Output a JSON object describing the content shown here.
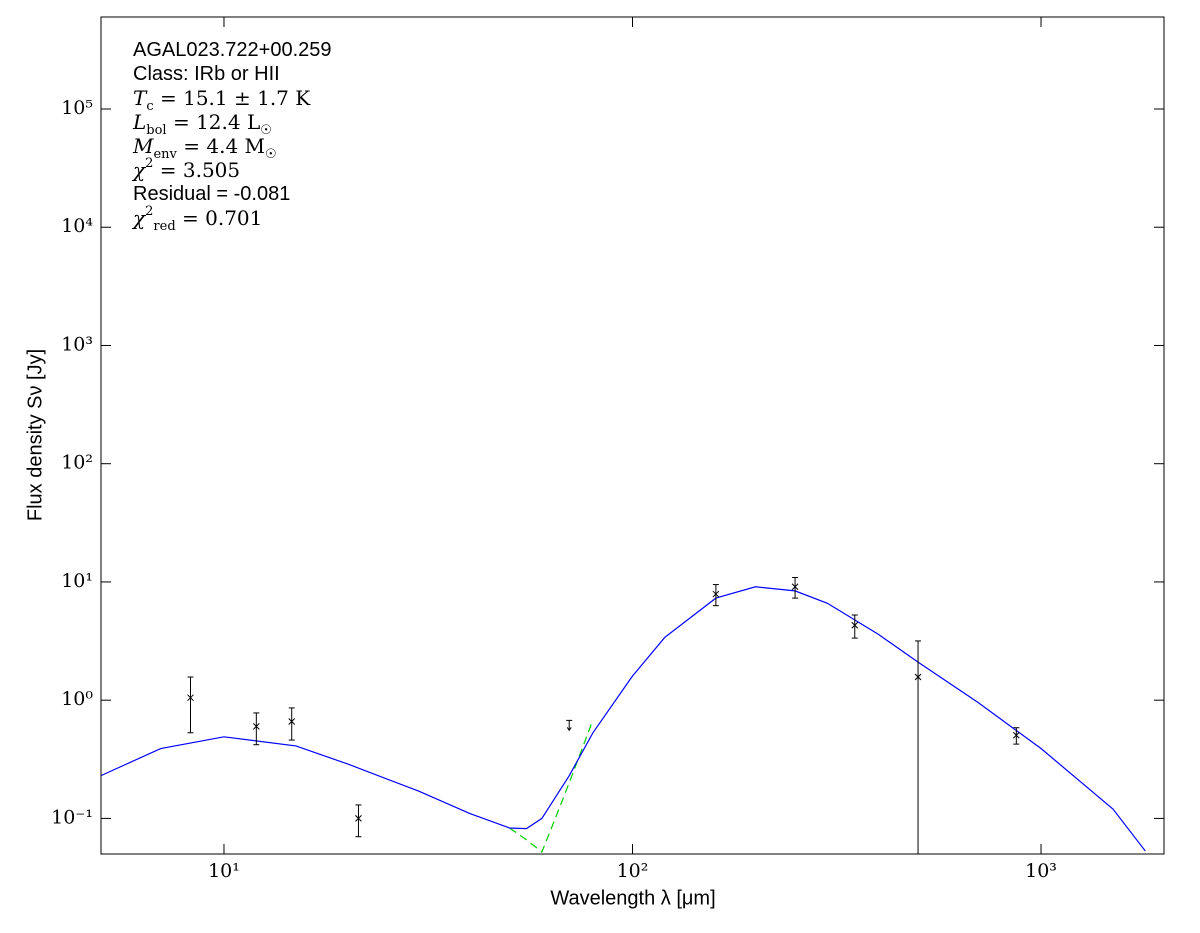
{
  "chart_data": {
    "type": "sed",
    "xlabel": "Wavelength λ [μm]",
    "ylabel": "Flux density Sν [Jy]",
    "log_x": true,
    "log_y": true,
    "xlim": [
      5,
      2000
    ],
    "ylim": [
      0.05,
      600000
    ],
    "xticks": [
      {
        "value": 10,
        "label": "10¹"
      },
      {
        "value": 100,
        "label": "10²"
      },
      {
        "value": 1000,
        "label": "10³"
      }
    ],
    "yticks": [
      {
        "value": 0.1,
        "label": "10⁻¹"
      },
      {
        "value": 1,
        "label": "10⁰"
      },
      {
        "value": 10,
        "label": "10¹"
      },
      {
        "value": 100,
        "label": "10²"
      },
      {
        "value": 1000,
        "label": "10³"
      },
      {
        "value": 10000,
        "label": "10⁴"
      },
      {
        "value": 100000,
        "label": "10⁵"
      }
    ],
    "annotations": [
      {
        "font": "sans",
        "runs": [
          {
            "t": "AGAL023.722+00.259"
          }
        ]
      },
      {
        "font": "sans",
        "runs": [
          {
            "t": "Class: IRb or HII"
          }
        ]
      },
      {
        "font": "serif",
        "runs": [
          {
            "t": "T",
            "it": true
          },
          {
            "t": "c",
            "sub": true
          },
          {
            "t": " = 15.1 ± 1.7 K"
          }
        ]
      },
      {
        "font": "serif",
        "runs": [
          {
            "t": "L",
            "it": true
          },
          {
            "t": "bol",
            "sub": true
          },
          {
            "t": " = 12.4 L"
          },
          {
            "t": "☉",
            "sub": true
          }
        ]
      },
      {
        "font": "serif",
        "runs": [
          {
            "t": "M",
            "it": true
          },
          {
            "t": "env",
            "sub": true
          },
          {
            "t": " = 4.4 M"
          },
          {
            "t": "☉",
            "sub": true
          }
        ]
      },
      {
        "font": "serif",
        "runs": [
          {
            "t": "χ",
            "it": true
          },
          {
            "t": "2",
            "sup": true
          },
          {
            "t": " = 3.505"
          }
        ]
      },
      {
        "font": "sans",
        "runs": [
          {
            "t": "Residual = -0.081"
          }
        ]
      },
      {
        "font": "serif",
        "runs": [
          {
            "t": "χ",
            "it": true
          },
          {
            "t": "2",
            "sup": true
          },
          {
            "t": "red",
            "sub": true
          },
          {
            "t": " = 0.701"
          }
        ]
      }
    ],
    "points": {
      "color": "#000000",
      "x": [
        8.28,
        12,
        14.65,
        21.34,
        160,
        250,
        350,
        500,
        870
      ],
      "values": [
        1.05,
        0.6,
        0.66,
        0.1,
        7.9,
        9.1,
        4.3,
        1.57,
        0.505
      ],
      "errors": [
        0.52,
        0.18,
        0.2,
        0.03,
        1.6,
        1.8,
        0.95,
        1.6,
        0.08
      ]
    },
    "upper_limits": {
      "color": "#000000",
      "x": [
        70
      ],
      "values": [
        0.6
      ]
    },
    "series": [
      {
        "color": "#00cc00",
        "dashed": true,
        "x": [
          50,
          55,
          60,
          65,
          70,
          80
        ],
        "values": [
          0.083,
          0.066,
          0.052,
          0.104,
          0.2,
          0.68
        ]
      },
      {
        "color": "#0000ff",
        "dashed": false,
        "x": [
          5,
          7,
          10,
          15,
          20,
          30,
          40,
          50,
          55,
          60,
          70,
          80,
          100,
          120,
          160,
          200,
          250,
          300,
          400,
          500,
          700,
          1000,
          1500,
          1800
        ],
        "values": [
          0.23,
          0.39,
          0.49,
          0.41,
          0.29,
          0.17,
          0.11,
          0.083,
          0.082,
          0.1,
          0.23,
          0.53,
          1.6,
          3.4,
          7.3,
          9.1,
          8.4,
          6.6,
          3.6,
          2.1,
          0.96,
          0.39,
          0.12,
          0.053
        ]
      }
    ]
  }
}
